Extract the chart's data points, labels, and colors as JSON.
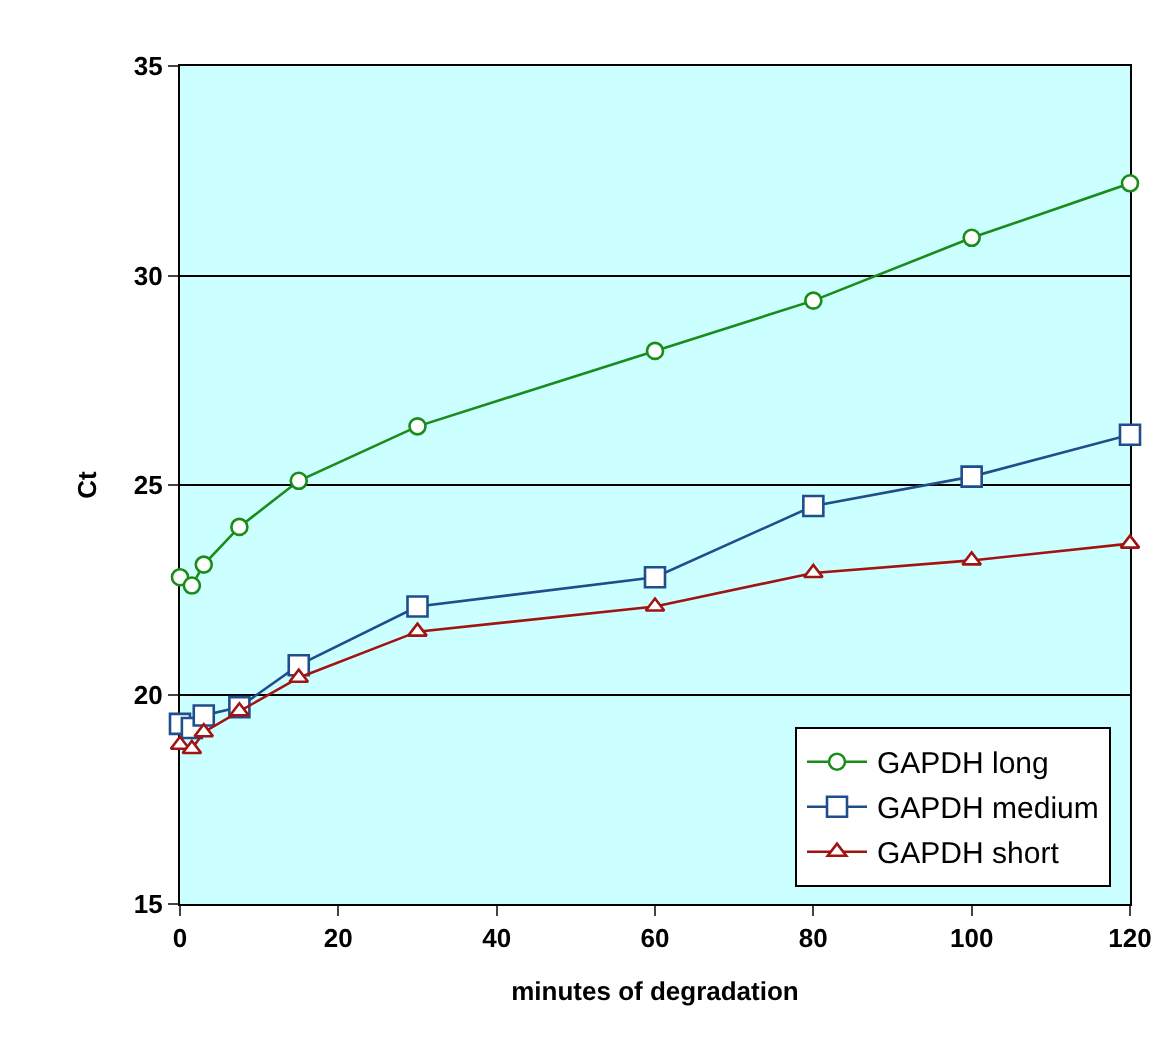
{
  "chart_data": {
    "type": "line",
    "xlabel": "minutes of degradation",
    "ylabel": "Ct",
    "x": [
      0,
      1.5,
      3,
      7.5,
      15,
      30,
      60,
      80,
      100,
      120
    ],
    "series": [
      {
        "name": "GAPDH long",
        "color": "#1a8c1a",
        "marker": "circle",
        "values": [
          22.8,
          22.6,
          23.1,
          24.0,
          25.1,
          26.4,
          28.2,
          29.4,
          30.9,
          32.2
        ]
      },
      {
        "name": "GAPDH medium",
        "color": "#1f4e8c",
        "marker": "square",
        "values": [
          19.3,
          19.2,
          19.5,
          19.7,
          20.7,
          22.1,
          22.8,
          24.5,
          25.2,
          26.2
        ]
      },
      {
        "name": "GAPDH short",
        "color": "#a01414",
        "marker": "triangle",
        "values": [
          18.8,
          18.7,
          19.1,
          19.6,
          20.4,
          21.5,
          22.1,
          22.9,
          23.2,
          23.6
        ]
      }
    ],
    "xlim": [
      0,
      120
    ],
    "xticks": [
      0,
      20,
      40,
      60,
      80,
      100,
      120
    ],
    "ylim": [
      15,
      35
    ],
    "yticks": [
      15,
      20,
      25,
      30,
      35
    ],
    "grid": "y",
    "legend": "bottom right",
    "line_style": "solid"
  }
}
